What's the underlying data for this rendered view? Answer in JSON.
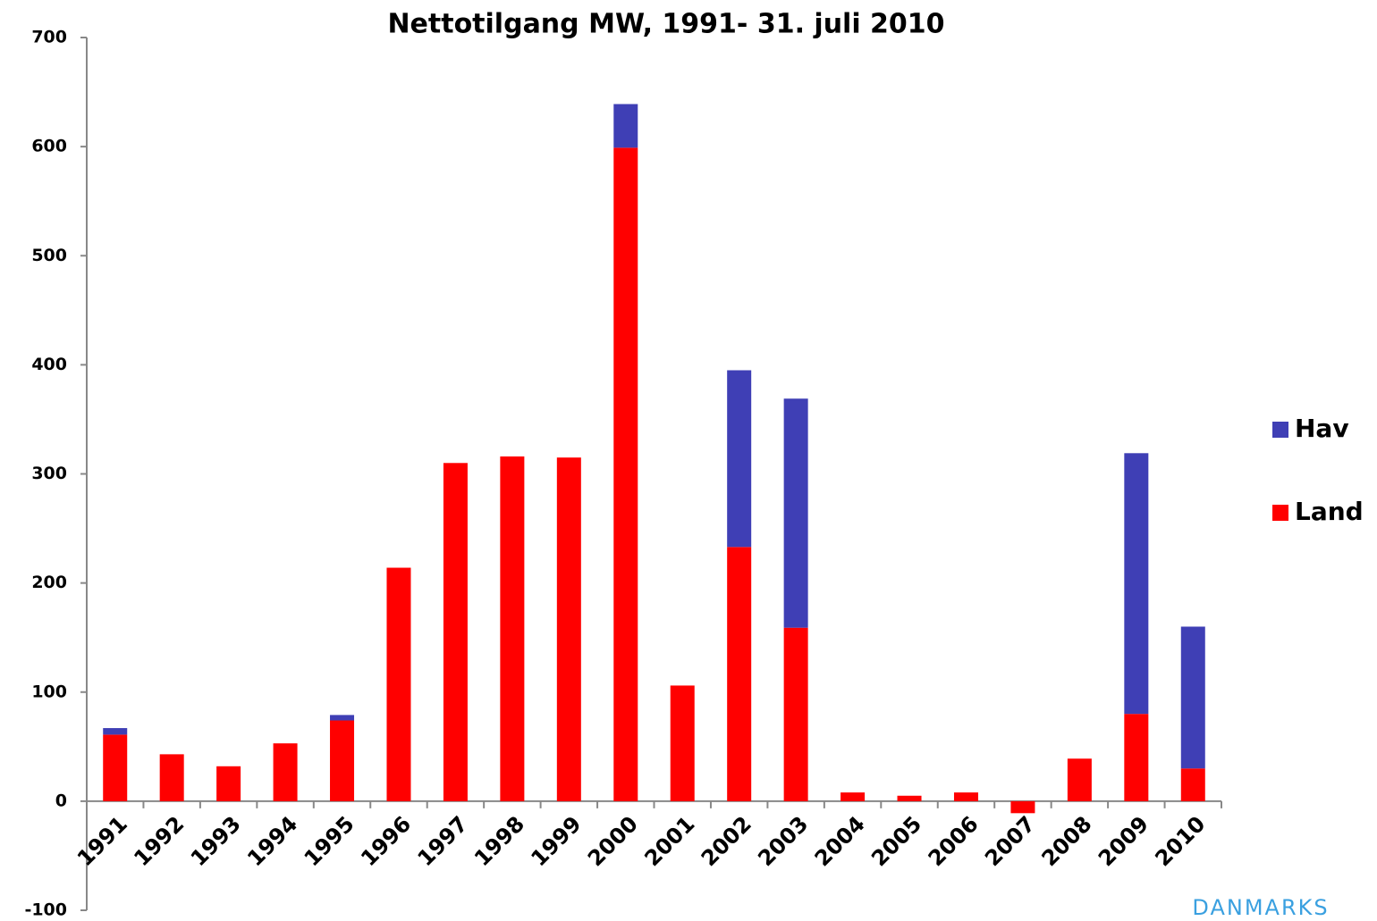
{
  "chart_data": {
    "type": "stacked_bar",
    "title": "Nettotilgang MW, 1991- 31. juli 2010",
    "categories": [
      "1991",
      "1992",
      "1993",
      "1994",
      "1995",
      "1996",
      "1997",
      "1998",
      "1999",
      "2000",
      "2001",
      "2002",
      "2003",
      "2004",
      "2005",
      "2006",
      "2007",
      "2008",
      "2009",
      "2010"
    ],
    "series": [
      {
        "name": "Land",
        "color": "#ff0000",
        "values": [
          61,
          43,
          32,
          53,
          74,
          214,
          310,
          316,
          315,
          599,
          106,
          233,
          159,
          8,
          5,
          8,
          -11,
          39,
          80,
          30
        ]
      },
      {
        "name": "Hav",
        "color": "#3f3fb5",
        "values": [
          6,
          0,
          0,
          0,
          5,
          0,
          0,
          0,
          0,
          40,
          0,
          162,
          210,
          0,
          0,
          0,
          0,
          0,
          239,
          130
        ]
      }
    ],
    "ylim": [
      -100,
      700
    ],
    "yticks": [
      -100,
      0,
      100,
      200,
      300,
      400,
      500,
      600,
      700
    ],
    "legend": "right",
    "annotation": "DANMARKS"
  }
}
